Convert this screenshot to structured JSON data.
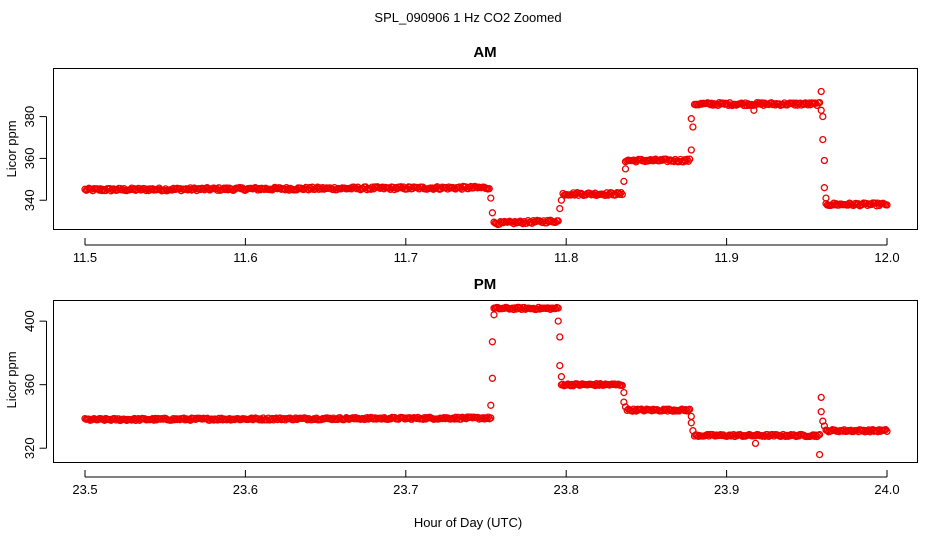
{
  "figure": {
    "title": "SPL_090906  1 Hz CO2 Zoomed",
    "xlabel": "Hour of Day (UTC)"
  },
  "colors": {
    "points": "#ee0000",
    "frame": "#000000",
    "background": "#ffffff"
  },
  "chart_data": [
    {
      "type": "scatter",
      "title": "AM",
      "ylabel": "Licor ppm",
      "xlim": [
        11.5,
        12.0
      ],
      "ylim": [
        326,
        403
      ],
      "xticks": [
        "11.5",
        "11.6",
        "11.7",
        "11.8",
        "11.9",
        "12.0"
      ],
      "yticks": [
        "340",
        "360",
        "380"
      ],
      "marker": "open circle",
      "segments": [
        {
          "x": [
            11.5,
            11.752
          ],
          "y": [
            345,
            346
          ]
        },
        {
          "x": [
            11.755,
            11.795
          ],
          "y": [
            329,
            330
          ]
        },
        {
          "x": [
            11.798,
            11.835
          ],
          "y": [
            343,
            343
          ]
        },
        {
          "x": [
            11.837,
            11.877
          ],
          "y": [
            359,
            359
          ]
        },
        {
          "x": [
            11.88,
            11.958
          ],
          "y": [
            386,
            386
          ]
        },
        {
          "x": [
            11.962,
            12.0
          ],
          "y": [
            338,
            338
          ]
        }
      ],
      "transition_points": [
        {
          "x": 11.753,
          "y": 341
        },
        {
          "x": 11.754,
          "y": 334
        },
        {
          "x": 11.796,
          "y": 336
        },
        {
          "x": 11.797,
          "y": 340
        },
        {
          "x": 11.836,
          "y": 349
        },
        {
          "x": 11.837,
          "y": 355
        },
        {
          "x": 11.878,
          "y": 364
        },
        {
          "x": 11.878,
          "y": 379
        },
        {
          "x": 11.879,
          "y": 375
        },
        {
          "x": 11.917,
          "y": 383
        },
        {
          "x": 11.959,
          "y": 392
        },
        {
          "x": 11.959,
          "y": 383
        },
        {
          "x": 11.96,
          "y": 380
        },
        {
          "x": 11.96,
          "y": 369
        },
        {
          "x": 11.961,
          "y": 359
        },
        {
          "x": 11.961,
          "y": 346
        },
        {
          "x": 11.962,
          "y": 341
        }
      ]
    },
    {
      "type": "scatter",
      "title": "PM",
      "ylabel": "Licor ppm",
      "xlim": [
        23.5,
        24.0
      ],
      "ylim": [
        311,
        413
      ],
      "xticks": [
        "23.5",
        "23.6",
        "23.7",
        "23.8",
        "23.9",
        "24.0"
      ],
      "yticks": [
        "320",
        "360",
        "400"
      ],
      "marker": "open circle",
      "segments": [
        {
          "x": [
            23.5,
            23.753
          ],
          "y": [
            338,
            339
          ]
        },
        {
          "x": [
            23.755,
            23.795
          ],
          "y": [
            408,
            408
          ]
        },
        {
          "x": [
            23.797,
            23.835
          ],
          "y": [
            360,
            360
          ]
        },
        {
          "x": [
            23.838,
            23.877
          ],
          "y": [
            344,
            344
          ]
        },
        {
          "x": [
            23.88,
            23.958
          ],
          "y": [
            328,
            328
          ]
        },
        {
          "x": [
            23.962,
            24.0
          ],
          "y": [
            331,
            331
          ]
        }
      ],
      "transition_points": [
        {
          "x": 23.753,
          "y": 347
        },
        {
          "x": 23.754,
          "y": 364
        },
        {
          "x": 23.754,
          "y": 387
        },
        {
          "x": 23.755,
          "y": 404
        },
        {
          "x": 23.795,
          "y": 400
        },
        {
          "x": 23.796,
          "y": 390
        },
        {
          "x": 23.796,
          "y": 372
        },
        {
          "x": 23.797,
          "y": 365
        },
        {
          "x": 23.836,
          "y": 355
        },
        {
          "x": 23.836,
          "y": 349
        },
        {
          "x": 23.837,
          "y": 346
        },
        {
          "x": 23.878,
          "y": 340
        },
        {
          "x": 23.878,
          "y": 336
        },
        {
          "x": 23.879,
          "y": 331
        },
        {
          "x": 23.918,
          "y": 323
        },
        {
          "x": 23.958,
          "y": 316
        },
        {
          "x": 23.959,
          "y": 352
        },
        {
          "x": 23.959,
          "y": 343
        },
        {
          "x": 23.96,
          "y": 337
        },
        {
          "x": 23.961,
          "y": 334
        }
      ]
    }
  ]
}
